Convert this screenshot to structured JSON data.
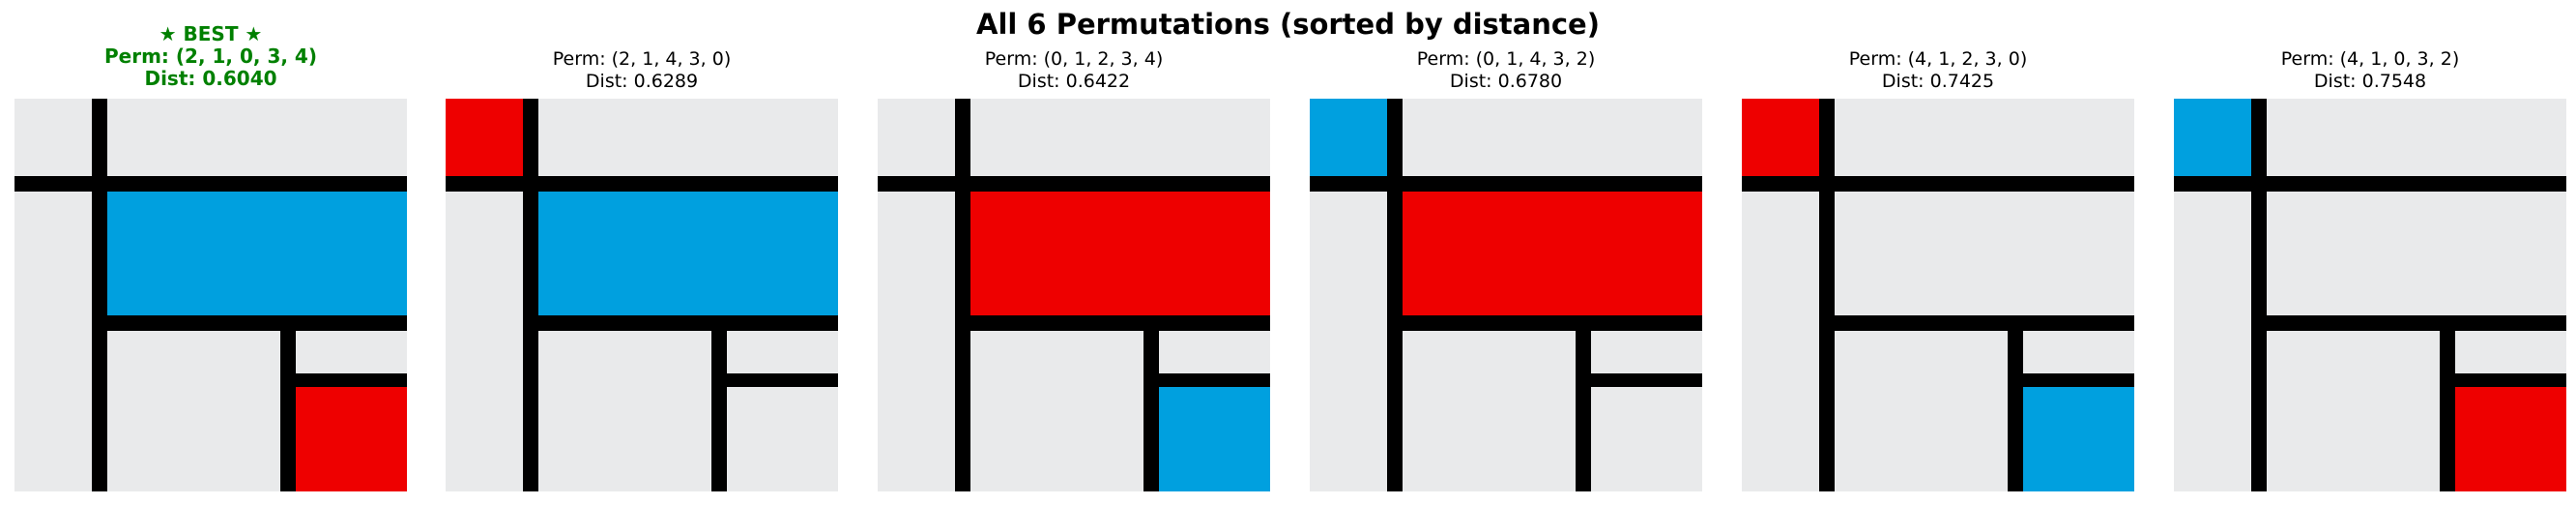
{
  "title": "All 6 Permutations (sorted by distance)",
  "colors": {
    "background": "#e9eaeb",
    "line": "#000000",
    "red": "#ee0000",
    "blue": "#00a0df",
    "best_title": "#008000"
  },
  "panels": [
    {
      "best_label": "★ BEST ★",
      "perm": "Perm: (2, 1, 0, 3, 4)",
      "dist": "Dist: 0.6040",
      "best": true,
      "blocks": {
        "top_left": "background",
        "big_middle": "blue",
        "bottom_right": "red"
      }
    },
    {
      "perm": "Perm: (2, 1, 4, 3, 0)",
      "dist": "Dist: 0.6289",
      "best": false,
      "blocks": {
        "top_left": "red",
        "big_middle": "blue",
        "bottom_right": "background"
      }
    },
    {
      "perm": "Perm: (0, 1, 2, 3, 4)",
      "dist": "Dist: 0.6422",
      "best": false,
      "blocks": {
        "top_left": "background",
        "big_middle": "red",
        "bottom_right": "blue"
      }
    },
    {
      "perm": "Perm: (0, 1, 4, 3, 2)",
      "dist": "Dist: 0.6780",
      "best": false,
      "blocks": {
        "top_left": "blue",
        "big_middle": "red",
        "bottom_right": "background"
      }
    },
    {
      "perm": "Perm: (4, 1, 2, 3, 0)",
      "dist": "Dist: 0.7425",
      "best": false,
      "blocks": {
        "top_left": "red",
        "big_middle": "background",
        "bottom_right": "blue"
      }
    },
    {
      "perm": "Perm: (4, 1, 0, 3, 2)",
      "dist": "Dist: 0.7548",
      "best": false,
      "blocks": {
        "top_left": "blue",
        "big_middle": "background",
        "bottom_right": "red"
      }
    }
  ]
}
